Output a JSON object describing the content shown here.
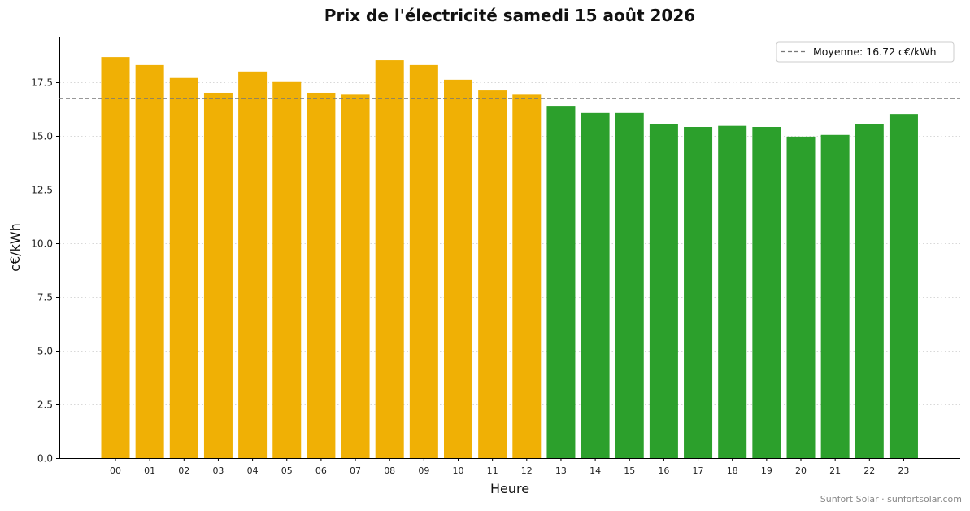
{
  "chart_data": {
    "type": "bar",
    "title": "Prix de l'électricité samedi 15 août 2026",
    "xlabel": "Heure",
    "ylabel": "c€/kWh",
    "ylim": [
      0,
      19.6
    ],
    "yticks": [
      "0.0",
      "2.5",
      "5.0",
      "7.5",
      "10.0",
      "12.5",
      "15.0",
      "17.5"
    ],
    "ytick_values": [
      0,
      2.5,
      5,
      7.5,
      10,
      12.5,
      15,
      17.5
    ],
    "categories": [
      "00",
      "01",
      "02",
      "03",
      "04",
      "05",
      "06",
      "07",
      "08",
      "09",
      "10",
      "11",
      "12",
      "13",
      "14",
      "15",
      "16",
      "17",
      "18",
      "19",
      "20",
      "21",
      "22",
      "23"
    ],
    "values": [
      18.65,
      18.28,
      17.68,
      16.99,
      17.98,
      17.49,
      16.99,
      16.9,
      18.5,
      18.28,
      17.6,
      17.1,
      16.9,
      16.38,
      16.05,
      16.05,
      15.52,
      15.4,
      15.45,
      15.4,
      14.95,
      15.03,
      15.52,
      16.0
    ],
    "bar_colors": [
      "#f0b005",
      "#f0b005",
      "#f0b005",
      "#f0b005",
      "#f0b005",
      "#f0b005",
      "#f0b005",
      "#f0b005",
      "#f0b005",
      "#f0b005",
      "#f0b005",
      "#f0b005",
      "#f0b005",
      "#2ca02c",
      "#2ca02c",
      "#2ca02c",
      "#2ca02c",
      "#2ca02c",
      "#2ca02c",
      "#2ca02c",
      "#2ca02c",
      "#2ca02c",
      "#2ca02c",
      "#2ca02c"
    ],
    "average": 16.72,
    "legend": {
      "label": "Moyenne: 16.72 c€/kWh",
      "placement": "top-right"
    },
    "average_line_color": "#777777",
    "grid": {
      "y": true,
      "style": "dotted"
    }
  },
  "credit": "Sunfort Solar · sunfortsolar.com"
}
